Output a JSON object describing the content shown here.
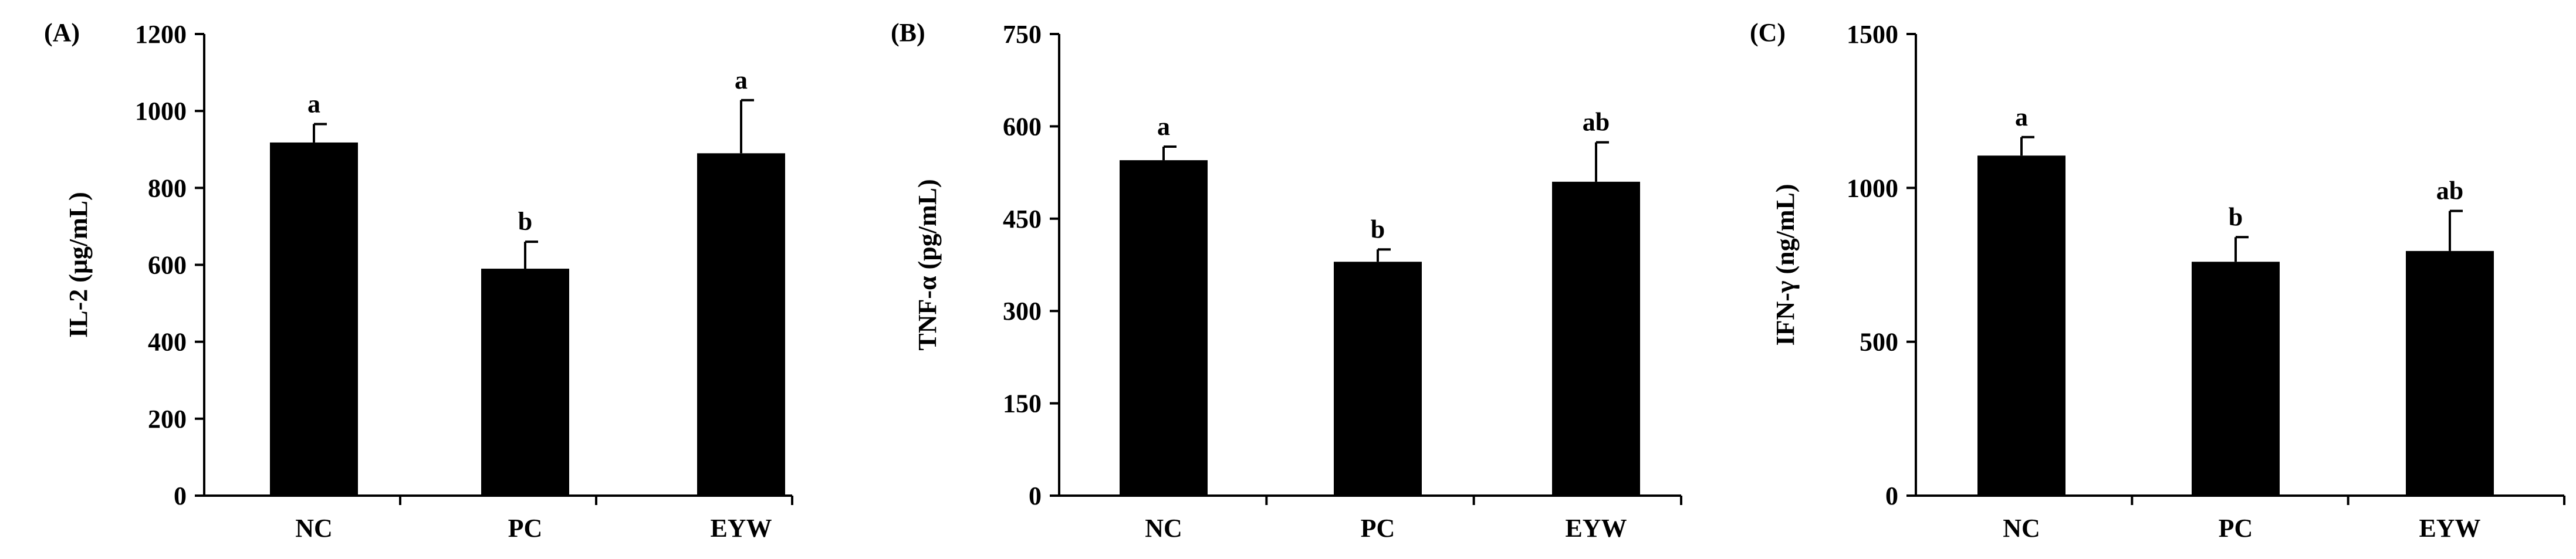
{
  "chart_data": [
    {
      "type": "bar",
      "panel_label": "(A)",
      "categories": [
        "NC",
        "PC",
        "EYW"
      ],
      "values": [
        918,
        590,
        890
      ],
      "error": [
        48,
        70,
        138
      ],
      "significance": [
        "a",
        "b",
        "a"
      ],
      "ylabel": "IL-2 (μg/mL)",
      "ylim": [
        0,
        1200
      ],
      "yticks": [
        "0",
        "200",
        "400",
        "600",
        "800",
        "1000",
        "1200"
      ],
      "bar_color": "#000000"
    },
    {
      "type": "bar",
      "panel_label": "(B)",
      "categories": [
        "NC",
        "PC",
        "EYW"
      ],
      "values": [
        545,
        380,
        510
      ],
      "error": [
        22,
        20,
        64
      ],
      "significance": [
        "a",
        "b",
        "ab"
      ],
      "ylabel": "TNF-α (pg/mL)",
      "ylim": [
        0,
        750
      ],
      "yticks": [
        "0",
        "150",
        "300",
        "450",
        "600",
        "750"
      ],
      "bar_color": "#000000"
    },
    {
      "type": "bar",
      "panel_label": "(C)",
      "categories": [
        "NC",
        "PC",
        "EYW"
      ],
      "values": [
        1105,
        760,
        795
      ],
      "error": [
        60,
        80,
        130
      ],
      "significance": [
        "a",
        "b",
        "ab"
      ],
      "ylabel": "IFN-γ (ng/mL)",
      "ylim": [
        0,
        1500
      ],
      "yticks": [
        "0",
        "500",
        "1000",
        "1500"
      ],
      "bar_color": "#000000"
    }
  ]
}
